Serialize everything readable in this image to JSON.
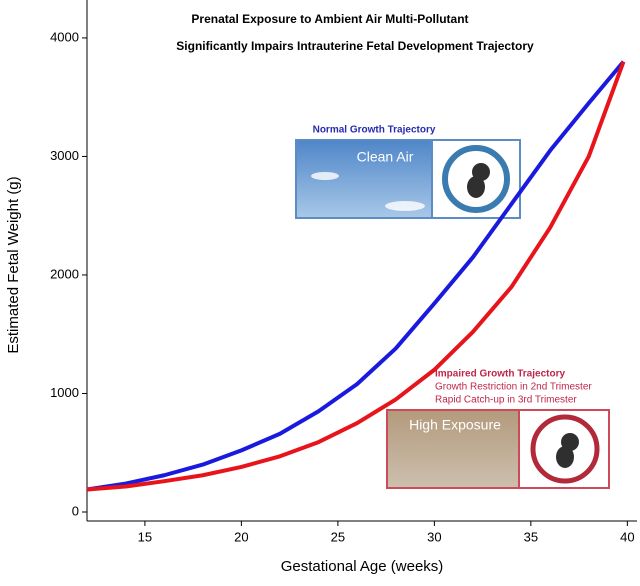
{
  "chart_data": {
    "type": "line",
    "title": "Prenatal Exposure to Ambient Air Multi-Pollutant",
    "subtitle": "Significantly Impairs Intrauterine Fetal Development Trajectory",
    "x_label": "Gestational Age (weeks)",
    "y_label": "Estimated Fetal Weight (g)",
    "x": [
      12,
      14,
      16,
      18,
      20,
      22,
      24,
      26,
      28,
      30,
      32,
      34,
      36,
      38,
      39.8
    ],
    "series": [
      {
        "color": "#1a1adf",
        "values": [
          190,
          240,
          310,
          400,
          520,
          660,
          850,
          1080,
          1380,
          1760,
          2150,
          2600,
          3050,
          3450,
          3800
        ]
      },
      {
        "color": "#e8141c",
        "values": [
          190,
          215,
          260,
          310,
          380,
          470,
          590,
          750,
          950,
          1200,
          1520,
          1900,
          2400,
          3000,
          3800
        ]
      }
    ],
    "xlim": [
      12,
      40.5
    ],
    "xticks": [
      15,
      20,
      25,
      30,
      35,
      40
    ],
    "ylim": [
      -76,
      4320
    ],
    "yticks": [
      0,
      1000,
      2000,
      3000,
      4000
    ],
    "annotations": [
      "Normal Growth Trajectory",
      "Impaired Growth Trajectory",
      "Growth Restriction in 2nd Trimester",
      "Rapid Catch-up in 3rd Trimester"
    ],
    "image_labels": [
      "Clean Air",
      "High Exposure"
    ]
  }
}
